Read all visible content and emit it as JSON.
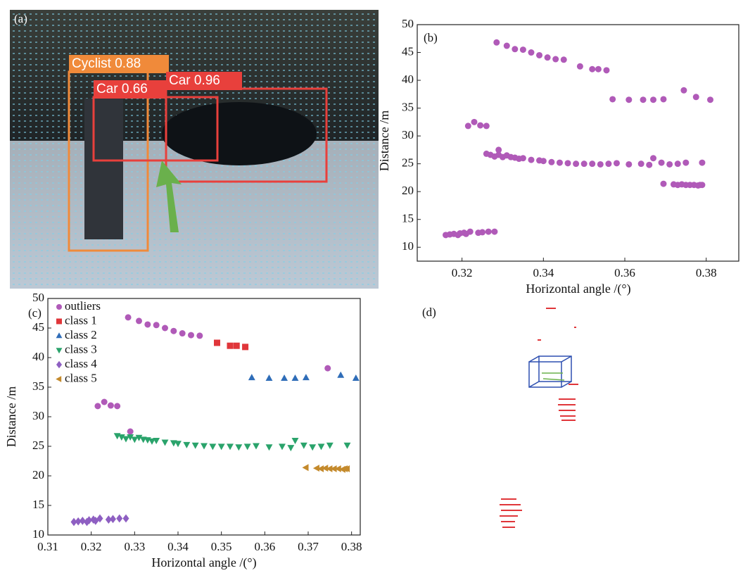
{
  "image_panel": {
    "label": "(a)",
    "detections": [
      {
        "label": "Cyclist 0.88"
      },
      {
        "label": "Car 0.66"
      },
      {
        "label": "Car 0.96"
      }
    ]
  },
  "point_cloud_panel": {
    "label": "(d)"
  },
  "chart_data": [
    {
      "type": "scatter",
      "panel_label": "(b)",
      "xlabel": "Horizontal angle /(°)",
      "ylabel": "Distance /m",
      "xlim": [
        0.309,
        0.388
      ],
      "ylim": [
        7.5,
        50
      ],
      "xticks": [
        0.32,
        0.34,
        0.36,
        0.38
      ],
      "yticks": [
        10,
        15,
        20,
        25,
        30,
        35,
        40,
        45,
        50
      ],
      "series": [
        {
          "color": "#b05ab8",
          "marker": "circle",
          "x": [
            0.3285,
            0.331,
            0.333,
            0.335,
            0.337,
            0.339,
            0.341,
            0.343,
            0.345,
            0.3215,
            0.323,
            0.3245,
            0.326,
            0.3745,
            0.329,
            0.349,
            0.352,
            0.3535,
            0.3555,
            0.357,
            0.361,
            0.3645,
            0.367,
            0.3695,
            0.3775,
            0.381,
            0.326,
            0.327,
            0.328,
            0.329,
            0.33,
            0.331,
            0.332,
            0.333,
            0.334,
            0.335,
            0.337,
            0.339,
            0.34,
            0.342,
            0.344,
            0.346,
            0.348,
            0.35,
            0.352,
            0.354,
            0.356,
            0.358,
            0.361,
            0.364,
            0.366,
            0.367,
            0.369,
            0.371,
            0.373,
            0.375,
            0.379,
            0.316,
            0.317,
            0.318,
            0.319,
            0.3195,
            0.3205,
            0.321,
            0.322,
            0.324,
            0.325,
            0.3265,
            0.328,
            0.3695,
            0.372,
            0.373,
            0.374,
            0.375,
            0.376,
            0.377,
            0.378,
            0.3785,
            0.379
          ],
          "values": [
            46.8,
            46.2,
            45.6,
            45.5,
            45,
            44.5,
            44.1,
            43.8,
            43.7,
            31.8,
            32.5,
            31.9,
            31.8,
            38.2,
            27.5,
            42.5,
            42,
            42,
            41.8,
            36.6,
            36.5,
            36.5,
            36.5,
            36.6,
            37,
            36.5,
            26.8,
            26.6,
            26.3,
            26.6,
            26.2,
            26.5,
            26.2,
            26.1,
            25.9,
            26.0,
            25.7,
            25.6,
            25.5,
            25.3,
            25.2,
            25.1,
            25.0,
            25.0,
            25.0,
            24.9,
            25.0,
            25.1,
            24.9,
            25.0,
            24.8,
            26.0,
            25.2,
            24.9,
            25.0,
            25.2,
            25.2,
            12.2,
            12.3,
            12.4,
            12.2,
            12.5,
            12.6,
            12.4,
            12.8,
            12.6,
            12.7,
            12.8,
            12.8,
            21.4,
            21.3,
            21.2,
            21.3,
            21.2,
            21.2,
            21.2,
            21.1,
            21.2,
            21.2
          ]
        }
      ]
    },
    {
      "type": "scatter",
      "panel_label": "(c)",
      "xlabel": "Horizontal angle /(°)",
      "ylabel": "Distance /m",
      "xlim": [
        0.31,
        0.382
      ],
      "ylim": [
        10,
        50
      ],
      "xticks": [
        0.31,
        0.32,
        0.33,
        0.34,
        0.35,
        0.36,
        0.37,
        0.38
      ],
      "yticks": [
        10,
        15,
        20,
        25,
        30,
        35,
        40,
        45,
        50
      ],
      "legend": "upper left",
      "series": [
        {
          "name": "outliers",
          "color": "#b05ab8",
          "marker": "circle",
          "x": [
            0.3285,
            0.331,
            0.333,
            0.335,
            0.337,
            0.339,
            0.341,
            0.343,
            0.345,
            0.3215,
            0.323,
            0.3245,
            0.326,
            0.3745,
            0.329
          ],
          "values": [
            46.8,
            46.2,
            45.6,
            45.5,
            45,
            44.5,
            44.1,
            43.8,
            43.7,
            31.8,
            32.5,
            31.9,
            31.8,
            38.2,
            27.5
          ]
        },
        {
          "name": "class 1",
          "color": "#e0363a",
          "marker": "square",
          "x": [
            0.349,
            0.352,
            0.3535,
            0.3555
          ],
          "values": [
            42.5,
            42,
            42,
            41.8
          ]
        },
        {
          "name": "class 2",
          "color": "#2f6db8",
          "marker": "triangle-up",
          "x": [
            0.357,
            0.361,
            0.3645,
            0.367,
            0.3695,
            0.3775,
            0.381
          ],
          "values": [
            36.6,
            36.5,
            36.5,
            36.5,
            36.6,
            37,
            36.5
          ]
        },
        {
          "name": "class 3",
          "color": "#2aa36b",
          "marker": "triangle-down",
          "x": [
            0.326,
            0.327,
            0.328,
            0.329,
            0.33,
            0.331,
            0.332,
            0.333,
            0.334,
            0.335,
            0.337,
            0.339,
            0.34,
            0.342,
            0.344,
            0.346,
            0.348,
            0.35,
            0.352,
            0.354,
            0.356,
            0.358,
            0.361,
            0.364,
            0.366,
            0.367,
            0.369,
            0.371,
            0.373,
            0.375,
            0.379
          ],
          "values": [
            26.8,
            26.6,
            26.3,
            26.6,
            26.2,
            26.5,
            26.2,
            26.1,
            25.9,
            26.0,
            25.7,
            25.6,
            25.5,
            25.3,
            25.2,
            25.1,
            25.0,
            25.0,
            25.0,
            24.9,
            25.0,
            25.1,
            24.9,
            25.0,
            24.8,
            26.0,
            25.2,
            24.9,
            25.0,
            25.2,
            25.2
          ]
        },
        {
          "name": "class 4",
          "color": "#8e5fc2",
          "marker": "diamond",
          "x": [
            0.316,
            0.317,
            0.318,
            0.319,
            0.3195,
            0.3205,
            0.321,
            0.322,
            0.324,
            0.325,
            0.3265,
            0.328
          ],
          "values": [
            12.2,
            12.3,
            12.4,
            12.2,
            12.5,
            12.6,
            12.4,
            12.8,
            12.6,
            12.7,
            12.8,
            12.8
          ]
        },
        {
          "name": "class 5",
          "color": "#c48a2c",
          "marker": "triangle-left",
          "x": [
            0.3695,
            0.372,
            0.373,
            0.374,
            0.375,
            0.376,
            0.377,
            0.378,
            0.3785,
            0.379
          ],
          "values": [
            21.4,
            21.3,
            21.2,
            21.3,
            21.2,
            21.2,
            21.2,
            21.1,
            21.2,
            21.2
          ]
        }
      ]
    }
  ]
}
